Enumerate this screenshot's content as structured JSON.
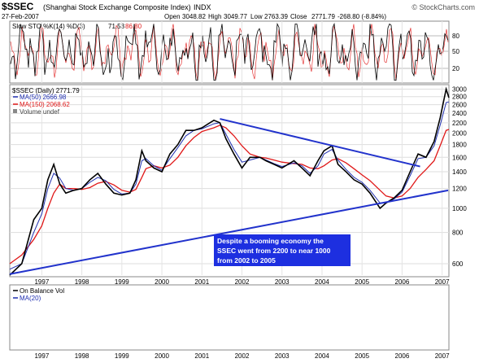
{
  "header": {
    "symbol": "$SSEC",
    "name": "(Shanghai Stock Exchange Composite Index)",
    "exchange": "INDX",
    "date": "27-Feb-2007",
    "open_label": "Open",
    "open": "3048.82",
    "high_label": "High",
    "high": "3049.77",
    "low_label": "Low",
    "low": "2763.39",
    "close_label": "Close",
    "close": "2771.79",
    "change": "-268.80 (-8.84%)",
    "credit": "© StockCharts.com"
  },
  "sto_panel": {
    "legend": "Slow STO %K(14) %D(3)",
    "k_value": "71.53",
    "d_value": "86.80",
    "levels": [
      20,
      50,
      80
    ],
    "level_labels": [
      "20",
      "50",
      "80"
    ]
  },
  "price_panel": {
    "legend": "$SSEC (Daily) 2771.79",
    "ma50_legend": "MA(50) 2666.98",
    "ma150_legend": "MA(150) 2068.62",
    "volume_legend": "Volume undef",
    "annotation": [
      "Despite a booming economy the",
      "SSEC went from 2200 to near 1000",
      "from 2002 to 2005"
    ],
    "y_ticks": [
      600,
      800,
      1000,
      1200,
      1400,
      1600,
      1800,
      2000,
      2200,
      2400,
      2600,
      2800,
      3000
    ],
    "x_labels": [
      "1997",
      "1998",
      "1999",
      "2000",
      "2001",
      "2002",
      "2003",
      "2004",
      "2005",
      "2006",
      "2007"
    ]
  },
  "obv_panel": {
    "legend": "On Balance Vol",
    "ma_legend": "MA(20)"
  },
  "colors": {
    "price": "#000000",
    "ma50": "#1f2fb0",
    "ma150": "#e01818",
    "trendline": "#2233cc",
    "sto_d": "#e01818",
    "annotation_bg": "#1d2fe0",
    "annotation_text": "#ffffff"
  },
  "chart_data": {
    "type": "line",
    "title": "$SSEC (Shanghai Stock Exchange Composite Index) INDX",
    "x_range": [
      1996.2,
      2007.17
    ],
    "y_scale": "log",
    "y_range": [
      540,
      3080
    ],
    "x": [
      1996.2,
      1996.5,
      1996.8,
      1997.0,
      1997.15,
      1997.3,
      1997.45,
      1997.6,
      1997.8,
      1998.0,
      1998.2,
      1998.4,
      1998.6,
      1998.8,
      1999.0,
      1999.2,
      1999.35,
      1999.5,
      1999.6,
      1999.8,
      2000.0,
      2000.2,
      2000.4,
      2000.6,
      2000.8,
      2001.0,
      2001.3,
      2001.45,
      2001.6,
      2001.8,
      2002.0,
      2002.2,
      2002.45,
      2002.6,
      2002.8,
      2003.0,
      2003.3,
      2003.5,
      2003.7,
      2003.9,
      2004.05,
      2004.25,
      2004.4,
      2004.6,
      2004.8,
      2005.0,
      2005.2,
      2005.45,
      2005.6,
      2005.8,
      2006.0,
      2006.2,
      2006.4,
      2006.6,
      2006.8,
      2006.95,
      2007.1,
      2007.17
    ],
    "series": [
      {
        "values": [
          540,
          600,
          900,
          1000,
          1300,
          1500,
          1250,
          1150,
          1180,
          1200,
          1300,
          1380,
          1250,
          1150,
          1130,
          1150,
          1300,
          1700,
          1550,
          1450,
          1400,
          1650,
          1800,
          2050,
          2050,
          2100,
          2250,
          2200,
          1900,
          1650,
          1450,
          1600,
          1600,
          1550,
          1500,
          1450,
          1550,
          1450,
          1350,
          1550,
          1700,
          1780,
          1500,
          1400,
          1300,
          1250,
          1150,
          1000,
          1050,
          1100,
          1180,
          1400,
          1650,
          1600,
          1850,
          2300,
          3000,
          2771.79
        ]
      },
      {
        "name": "MA(50)",
        "values": [
          570,
          600,
          800,
          950,
          1200,
          1380,
          1320,
          1200,
          1180,
          1200,
          1270,
          1330,
          1290,
          1190,
          1140,
          1150,
          1250,
          1550,
          1580,
          1480,
          1420,
          1580,
          1750,
          1950,
          2050,
          2080,
          2180,
          2200,
          1980,
          1720,
          1530,
          1560,
          1600,
          1560,
          1510,
          1470,
          1520,
          1480,
          1380,
          1480,
          1650,
          1720,
          1560,
          1430,
          1330,
          1270,
          1180,
          1050,
          1050,
          1090,
          1160,
          1350,
          1580,
          1600,
          1780,
          2150,
          2650,
          2666.98
        ]
      },
      {
        "name": "MA(150)",
        "values": [
          600,
          650,
          750,
          850,
          1000,
          1150,
          1250,
          1200,
          1200,
          1190,
          1210,
          1260,
          1280,
          1240,
          1180,
          1160,
          1190,
          1330,
          1440,
          1480,
          1450,
          1490,
          1600,
          1780,
          1920,
          2030,
          2100,
          2150,
          2100,
          1950,
          1780,
          1650,
          1600,
          1590,
          1560,
          1530,
          1510,
          1500,
          1450,
          1440,
          1480,
          1560,
          1580,
          1520,
          1440,
          1360,
          1290,
          1180,
          1120,
          1100,
          1120,
          1200,
          1330,
          1430,
          1550,
          1780,
          2050,
          2068.62
        ]
      }
    ]
  }
}
